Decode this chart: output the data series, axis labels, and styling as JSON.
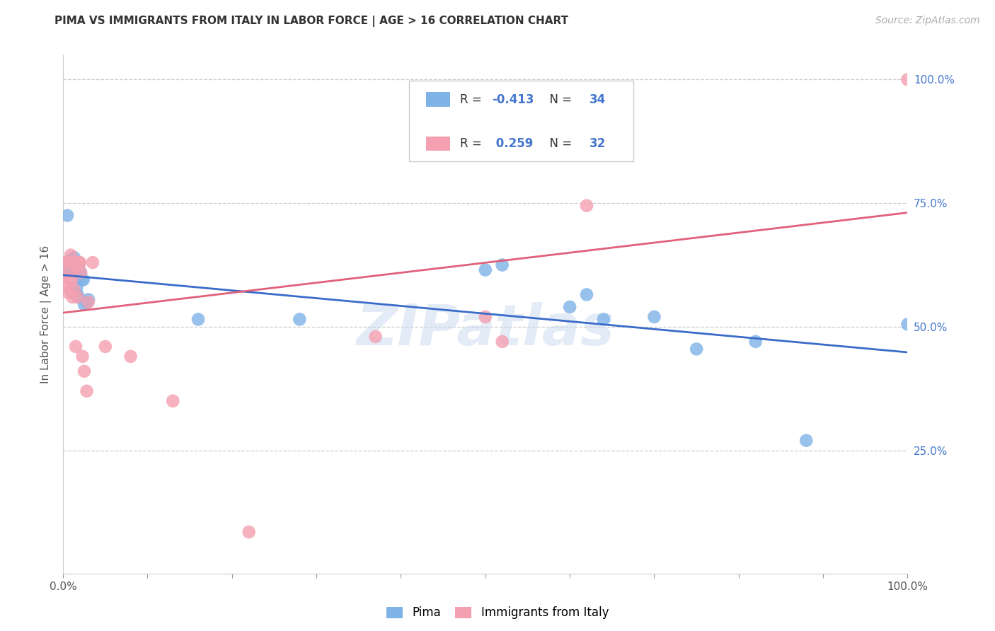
{
  "title": "PIMA VS IMMIGRANTS FROM ITALY IN LABOR FORCE | AGE > 16 CORRELATION CHART",
  "source": "Source: ZipAtlas.com",
  "ylabel": "In Labor Force | Age > 16",
  "pima_color": "#7fb3e8",
  "italy_color": "#f4a0b0",
  "pima_line_color": "#3a6bc9",
  "italy_line_color": "#e0607a",
  "watermark": "ZIPatlas",
  "pima_scatter_x": [
    0.0,
    0.005,
    0.005,
    0.007,
    0.008,
    0.009,
    0.01,
    0.01,
    0.012,
    0.013,
    0.014,
    0.015,
    0.016,
    0.017,
    0.018,
    0.019,
    0.02,
    0.022,
    0.024,
    0.025,
    0.028,
    0.03,
    0.16,
    0.28,
    0.5,
    0.52,
    0.6,
    0.62,
    0.64,
    0.7,
    0.75,
    0.82,
    0.88,
    1.0
  ],
  "pima_scatter_y": [
    0.615,
    0.615,
    0.725,
    0.62,
    0.62,
    0.635,
    0.625,
    0.57,
    0.615,
    0.64,
    0.57,
    0.61,
    0.58,
    0.565,
    0.56,
    0.615,
    0.61,
    0.595,
    0.595,
    0.545,
    0.55,
    0.555,
    0.515,
    0.515,
    0.615,
    0.625,
    0.54,
    0.565,
    0.515,
    0.52,
    0.455,
    0.47,
    0.27,
    0.505
  ],
  "italy_scatter_x": [
    0.0,
    0.0,
    0.003,
    0.005,
    0.006,
    0.007,
    0.008,
    0.009,
    0.01,
    0.011,
    0.012,
    0.013,
    0.015,
    0.016,
    0.017,
    0.019,
    0.02,
    0.021,
    0.023,
    0.025,
    0.028,
    0.03,
    0.035,
    0.05,
    0.08,
    0.13,
    0.22,
    0.37,
    0.5,
    0.52,
    0.62,
    1.0
  ],
  "italy_scatter_y": [
    0.63,
    0.6,
    0.63,
    0.57,
    0.58,
    0.61,
    0.595,
    0.645,
    0.595,
    0.56,
    0.63,
    0.575,
    0.46,
    0.62,
    0.56,
    0.63,
    0.63,
    0.61,
    0.44,
    0.41,
    0.37,
    0.55,
    0.63,
    0.46,
    0.44,
    0.35,
    0.085,
    0.48,
    0.52,
    0.47,
    0.745,
    1.0
  ],
  "pima_R": -0.413,
  "pima_N": 34,
  "italy_R": 0.259,
  "italy_N": 32,
  "xlim": [
    0.0,
    1.0
  ],
  "ylim": [
    0.0,
    1.05
  ],
  "grid_color": "#cccccc",
  "ytick_positions": [
    0.25,
    0.5,
    0.75,
    1.0
  ],
  "ytick_labels": [
    "25.0%",
    "50.0%",
    "75.0%",
    "100.0%"
  ],
  "title_fontsize": 11,
  "source_fontsize": 10,
  "axis_label_fontsize": 11,
  "tick_fontsize": 11
}
